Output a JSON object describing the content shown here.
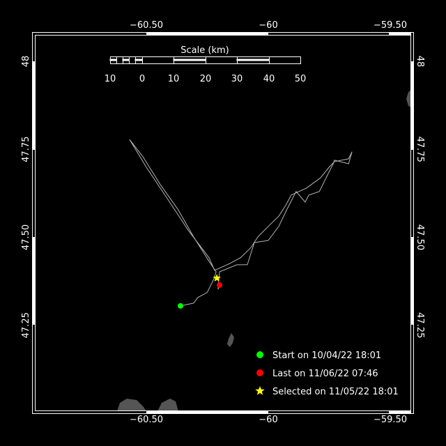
{
  "map": {
    "lon_ticks": [
      {
        "value": -60.5,
        "label": "−60.50"
      },
      {
        "value": -60.0,
        "label": "−60"
      },
      {
        "value": -59.5,
        "label": "−59.50"
      }
    ],
    "lat_ticks": [
      {
        "value": 48.0,
        "label": "48"
      },
      {
        "value": 47.75,
        "label": "47.75"
      },
      {
        "value": 47.5,
        "label": "47.50"
      },
      {
        "value": 47.25,
        "label": "47.25"
      }
    ],
    "colors": {
      "background": "#000000",
      "track": "#b4b4b4",
      "land": "#555555",
      "start": "#00ff00",
      "last": "#ff0000",
      "selected": "#ffff00",
      "frame": "#ffffff"
    }
  },
  "scale_bar": {
    "title": "Scale (km)",
    "labels": [
      "10",
      "0",
      "10",
      "20",
      "30",
      "40",
      "50"
    ]
  },
  "track": [
    [
      -60.36,
      47.305
    ],
    [
      -60.306,
      47.313
    ],
    [
      -60.289,
      47.329
    ],
    [
      -60.251,
      47.343
    ],
    [
      -60.223,
      47.382
    ],
    [
      -60.214,
      47.402
    ],
    [
      -60.243,
      47.432
    ],
    [
      -60.306,
      47.501
    ],
    [
      -60.371,
      47.58
    ],
    [
      -60.443,
      47.65
    ],
    [
      -60.514,
      47.729
    ],
    [
      -60.569,
      47.778
    ],
    [
      -60.551,
      47.758
    ],
    [
      -60.5,
      47.699
    ],
    [
      -60.414,
      47.61
    ],
    [
      -60.329,
      47.521
    ],
    [
      -60.243,
      47.442
    ],
    [
      -60.22,
      47.406
    ],
    [
      -60.157,
      47.426
    ],
    [
      -60.114,
      47.442
    ],
    [
      -60.071,
      47.471
    ],
    [
      -60.043,
      47.501
    ],
    [
      -60.0,
      47.531
    ],
    [
      -59.957,
      47.56
    ],
    [
      -59.929,
      47.59
    ],
    [
      -59.906,
      47.62
    ],
    [
      -59.843,
      47.64
    ],
    [
      -59.786,
      47.669
    ],
    [
      -59.751,
      47.699
    ],
    [
      -59.729,
      47.715
    ],
    [
      -59.671,
      47.723
    ],
    [
      -59.657,
      47.743
    ],
    [
      -59.671,
      47.709
    ],
    [
      -59.729,
      47.719
    ],
    [
      -59.734,
      47.709
    ],
    [
      -59.791,
      47.63
    ],
    [
      -59.834,
      47.62
    ],
    [
      -59.849,
      47.6
    ],
    [
      -59.886,
      47.63
    ],
    [
      -59.923,
      47.58
    ],
    [
      -59.957,
      47.531
    ],
    [
      -60.0,
      47.491
    ],
    [
      -60.057,
      47.485
    ],
    [
      -60.086,
      47.422
    ],
    [
      -60.129,
      47.422
    ],
    [
      -60.2,
      47.402
    ],
    [
      -60.206,
      47.352
    ],
    [
      -60.2,
      47.364
    ]
  ],
  "markers": {
    "start": {
      "lon": -60.36,
      "lat": 47.305
    },
    "last": {
      "lon": -60.2,
      "lat": 47.364
    },
    "selected": {
      "lon": -60.211,
      "lat": 47.384
    }
  },
  "legend": {
    "start_label": "Start on 10/04/22 18:01",
    "last_label": "Last on 11/06/22 07:46",
    "selected_label": "Selected on 11/05/22 18:01"
  }
}
